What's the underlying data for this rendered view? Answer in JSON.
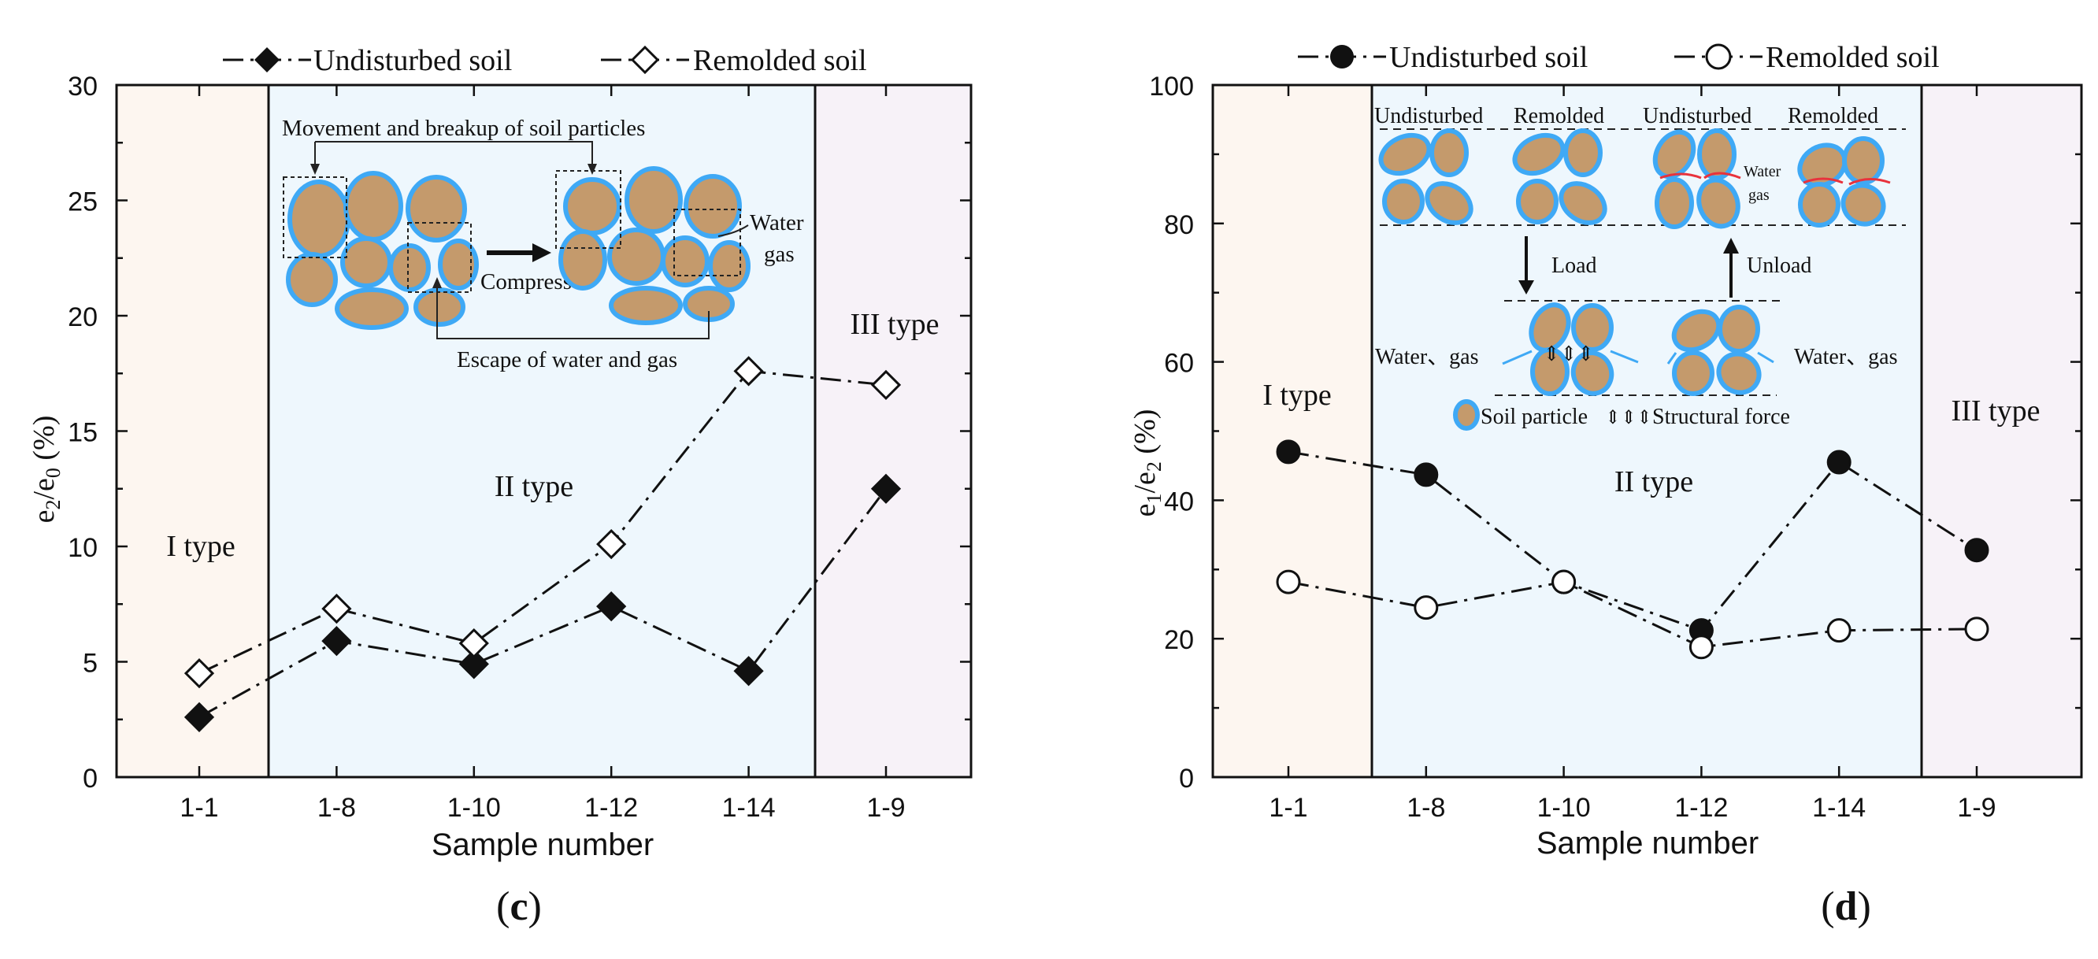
{
  "chart_data": [
    {
      "type": "line",
      "panel_label": "(c)",
      "panel_letter": "c",
      "xlabel": "Sample number",
      "ylabel_parts": {
        "a": "e",
        "a_sub": "2",
        "slash": "/",
        "b": "e",
        "b_sub": "0",
        "unit": " (%)"
      },
      "categories": [
        "1-1",
        "1-8",
        "1-10",
        "1-12",
        "1-14",
        "1-9"
      ],
      "ylim": [
        0,
        30
      ],
      "yticks": [
        0,
        5,
        10,
        15,
        20,
        25,
        30
      ],
      "series": [
        {
          "name": "Undisturbed soil",
          "marker": "diamond-filled",
          "values": [
            2.6,
            5.9,
            4.9,
            7.4,
            4.6,
            12.5
          ]
        },
        {
          "name": "Remolded soil",
          "marker": "diamond-open",
          "values": [
            4.5,
            7.3,
            5.8,
            10.1,
            17.6,
            17.0
          ]
        }
      ],
      "regions": [
        {
          "label": "I type",
          "from": 0,
          "to": 0,
          "color": "#fdf6f0"
        },
        {
          "label": "II type",
          "from": 1,
          "to": 4,
          "color": "#eef7fd"
        },
        {
          "label": "III type",
          "from": 5,
          "to": 5,
          "color": "#f7f2f8"
        }
      ],
      "inset": {
        "movement": "Movement and breakup of soil particles",
        "compress": "Compress",
        "water": "Water",
        "gas": "gas",
        "escape": "Escape of water and gas"
      }
    },
    {
      "type": "line",
      "panel_label": "(d)",
      "panel_letter": "d",
      "xlabel": "Sample number",
      "ylabel_parts": {
        "a": "e",
        "a_sub": "1",
        "slash": "/",
        "b": "e",
        "b_sub": "2",
        "unit": " (%)"
      },
      "categories": [
        "1-1",
        "1-8",
        "1-10",
        "1-12",
        "1-14",
        "1-9"
      ],
      "ylim": [
        0,
        100
      ],
      "yticks": [
        0,
        20,
        40,
        60,
        80,
        100
      ],
      "series": [
        {
          "name": "Undisturbed soil",
          "marker": "circle-filled",
          "values": [
            47.0,
            43.7,
            28.2,
            21.2,
            45.5,
            32.8
          ]
        },
        {
          "name": "Remolded soil",
          "marker": "circle-open",
          "values": [
            28.2,
            24.5,
            28.2,
            18.8,
            21.2,
            21.4
          ]
        }
      ],
      "regions": [
        {
          "label": "I type",
          "from": 0,
          "to": 0,
          "color": "#fdf6f0"
        },
        {
          "label": "II type",
          "from": 1,
          "to": 4,
          "color": "#eef7fd"
        },
        {
          "label": "III type",
          "from": 5,
          "to": 5,
          "color": "#f7f2f8"
        }
      ],
      "inset": {
        "undisturbed_1": "Undisturbed",
        "remolded_1": "Remolded",
        "undisturbed_2": "Undisturbed",
        "remolded_2": "Remolded",
        "water_small": "Water",
        "gas_small": "gas",
        "load": "Load",
        "unload": "Unload",
        "water_gas_left": "Water、gas",
        "water_gas_right": "Water、gas",
        "soil_particle": "Soil particle",
        "structural_force": "Structural force"
      }
    }
  ],
  "colors": {
    "ink": "#111111",
    "grain_fill": "#c49a6c",
    "grain_outline": "#3fa9f5",
    "arrow_red": "#e8323c",
    "arrow_blue": "#3fa9f5"
  }
}
